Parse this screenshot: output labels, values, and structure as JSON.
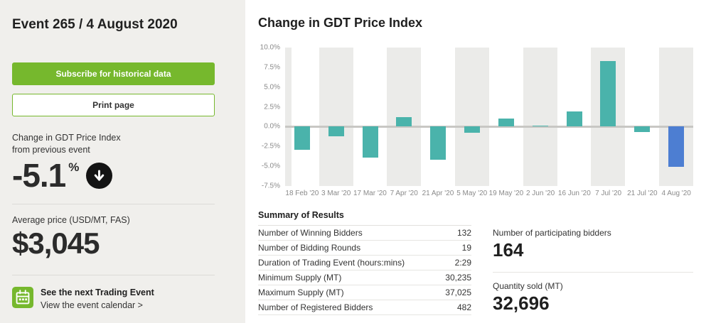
{
  "sidebar": {
    "title": "Event 265 / 4 August 2020",
    "subscribe_label": "Subscribe for historical data",
    "print_label": "Print page",
    "change_label_line1": "Change in GDT Price Index",
    "change_label_line2": "from previous event",
    "change_value": "-5.1",
    "change_unit": "%",
    "avg_price_label": "Average price (USD/MT, FAS)",
    "avg_price_value": "$3,045",
    "next_event_title": "See the next Trading Event",
    "next_event_link": "View the event calendar >"
  },
  "main": {
    "chart_title": "Change in GDT Price Index",
    "summary": {
      "heading": "Summary of Results",
      "rows": [
        {
          "label": "Number of Winning Bidders",
          "value": "132"
        },
        {
          "label": "Number of Bidding Rounds",
          "value": "19"
        },
        {
          "label": "Duration of Trading Event (hours:mins)",
          "value": "2:29"
        },
        {
          "label": "Minimum Supply (MT)",
          "value": "30,235"
        },
        {
          "label": "Maximum Supply (MT)",
          "value": "37,025"
        },
        {
          "label": "Number of Registered Bidders",
          "value": "482"
        }
      ],
      "participating_label": "Number of participating bidders",
      "participating_value": "164",
      "quantity_label": "Quantity sold (MT)",
      "quantity_value": "32,696"
    }
  },
  "chart_data": {
    "type": "bar",
    "title": "Change in GDT Price Index",
    "categories": [
      "18 Feb '20",
      "3 Mar '20",
      "17 Mar '20",
      "7 Apr '20",
      "21 Apr '20",
      "5 May '20",
      "19 May '20",
      "2 Jun '20",
      "16 Jun '20",
      "7 Jul '20",
      "21 Jul '20",
      "4 Aug '20"
    ],
    "values": [
      -2.9,
      -1.2,
      -3.9,
      1.2,
      -4.2,
      -0.8,
      1.0,
      0.1,
      1.9,
      8.3,
      -0.7,
      -5.1
    ],
    "xlabel": "",
    "ylabel": "",
    "ylim": [
      -7.5,
      10.0
    ],
    "yticks": [
      10.0,
      7.5,
      5.0,
      2.5,
      0.0,
      -2.5,
      -5.0,
      -7.5
    ],
    "ytick_labels": [
      "10.0%",
      "7.5%",
      "5.0%",
      "2.5%",
      "0.0%",
      "-2.5%",
      "-5.0%",
      "-7.5%"
    ],
    "bar_color": "#4ab3ab",
    "highlight_color": "#4d7ed2",
    "highlight_index": 11,
    "grid": false,
    "legend": false
  },
  "colors": {
    "accent_green": "#76b82d",
    "teal_bar": "#4ab3ab",
    "blue_bar": "#4d7ed2",
    "sidebar_bg": "#f0efec",
    "stripe_gray": "#ebebe9"
  }
}
